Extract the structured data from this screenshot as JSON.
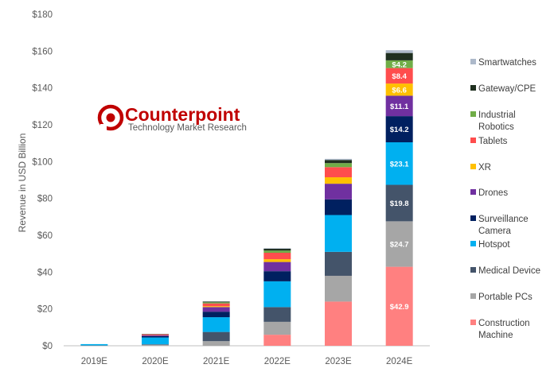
{
  "chart_data": {
    "type": "bar",
    "stacked": true,
    "title": "",
    "xlabel": "",
    "ylabel": "Revenue in USD Billion",
    "ylim": [
      0,
      180
    ],
    "yticks": [
      0,
      20,
      40,
      60,
      80,
      100,
      120,
      140,
      160,
      180
    ],
    "ytick_labels": [
      "$0",
      "$20",
      "$40",
      "$60",
      "$80",
      "$100",
      "$120",
      "$140",
      "$160",
      "$180"
    ],
    "grid": false,
    "legend_position": "right",
    "categories": [
      "2019E",
      "2020E",
      "2021E",
      "2022E",
      "2023E",
      "2024E"
    ],
    "series": [
      {
        "name": "Construction Machine",
        "color": "#ff8080",
        "values": [
          0,
          0,
          0,
          6,
          24,
          42.9
        ]
      },
      {
        "name": "Portable PCs",
        "color": "#a6a6a6",
        "values": [
          0.1,
          0.5,
          2.5,
          7,
          14,
          24.7
        ]
      },
      {
        "name": "Medical Device",
        "color": "#44546a",
        "values": [
          0.1,
          0.3,
          5,
          8,
          13,
          19.8
        ]
      },
      {
        "name": "Hotspot",
        "color": "#00b0f0",
        "values": [
          0.7,
          3.7,
          8,
          14,
          20,
          23.1
        ]
      },
      {
        "name": "Surveillance Camera",
        "color": "#002060",
        "values": [
          0,
          0.8,
          3,
          5.5,
          8.5,
          14.2
        ]
      },
      {
        "name": "Drones",
        "color": "#7030a0",
        "values": [
          0,
          0.4,
          2.5,
          5,
          8.5,
          11.1
        ]
      },
      {
        "name": "XR",
        "color": "#ffc000",
        "values": [
          0,
          0,
          0.5,
          1.5,
          3.5,
          6.6
        ]
      },
      {
        "name": "Tablets",
        "color": "#ff4d4d",
        "values": [
          0,
          0.5,
          1.5,
          3.5,
          5.5,
          8.4
        ]
      },
      {
        "name": "Industrial Robotics",
        "color": "#70ad47",
        "values": [
          0,
          0,
          0.6,
          1.2,
          2.2,
          4.2
        ]
      },
      {
        "name": "Gateway/CPE",
        "color": "#203020",
        "values": [
          0,
          0.2,
          0.4,
          1.0,
          1.7,
          4.0
        ]
      },
      {
        "name": "Smartwatches",
        "color": "#adb9ca",
        "values": [
          0,
          0,
          0.1,
          0.3,
          0.6,
          1.5
        ]
      }
    ],
    "data_labels": {
      "category": "2024E",
      "labels": [
        "$42.9",
        "$24.7",
        "$19.8",
        "$23.1",
        "$14.2",
        "$11.1",
        "$6.6",
        "$8.4",
        "$4.2",
        "",
        ""
      ]
    }
  },
  "legend": {
    "items": [
      {
        "lines": [
          "Smartwatches"
        ],
        "color": "#adb9ca"
      },
      {
        "lines": [
          "Gateway/CPE"
        ],
        "color": "#203020"
      },
      {
        "lines": [
          "Industrial",
          "Robotics"
        ],
        "color": "#70ad47"
      },
      {
        "lines": [
          "Tablets"
        ],
        "color": "#ff4d4d"
      },
      {
        "lines": [
          "XR"
        ],
        "color": "#ffc000"
      },
      {
        "lines": [
          "Drones"
        ],
        "color": "#7030a0"
      },
      {
        "lines": [
          "Surveillance",
          "Camera"
        ],
        "color": "#002060"
      },
      {
        "lines": [
          "Hotspot"
        ],
        "color": "#00b0f0"
      },
      {
        "lines": [
          "Medical Device"
        ],
        "color": "#44546a"
      },
      {
        "lines": [
          "Portable PCs"
        ],
        "color": "#a6a6a6"
      },
      {
        "lines": [
          "Construction",
          "Machine"
        ],
        "color": "#ff8080"
      }
    ]
  },
  "logo": {
    "name": "Counterpoint",
    "tagline": "Technology Market Research",
    "color": "#c00000"
  }
}
